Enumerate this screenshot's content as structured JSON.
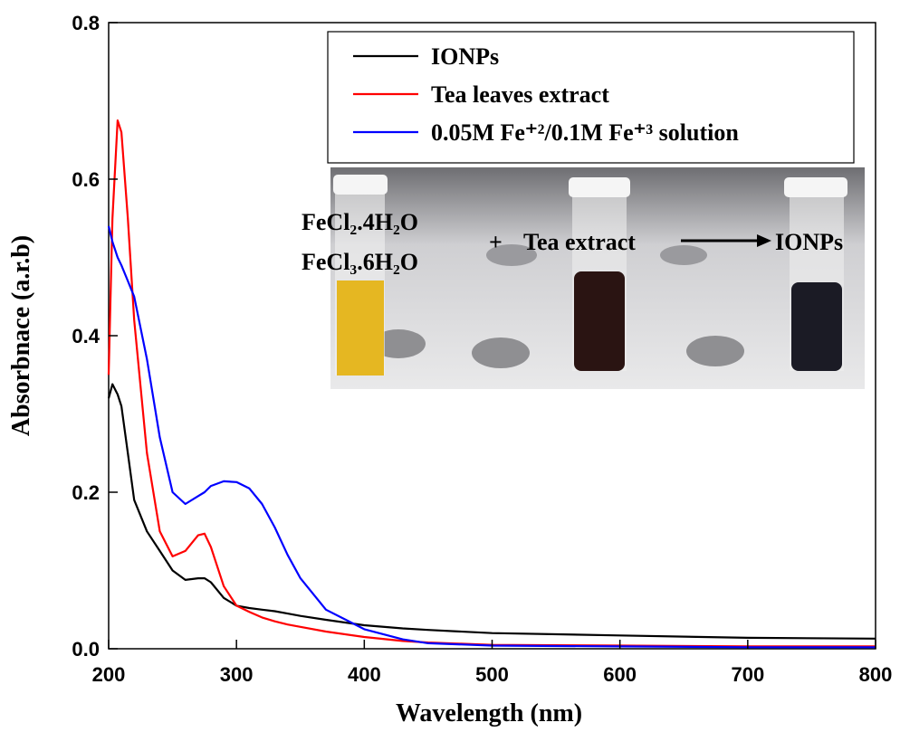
{
  "chart_data": {
    "type": "line",
    "xlabel": "Wavelength (nm)",
    "ylabel": "Absorbnace (a.r.b)",
    "x": [
      200,
      203,
      207,
      210,
      215,
      220,
      230,
      240,
      250,
      260,
      270,
      275,
      280,
      290,
      300,
      310,
      320,
      330,
      340,
      350,
      370,
      400,
      430,
      450,
      500,
      600,
      700,
      800
    ],
    "series": [
      {
        "name": "IONPs",
        "color": "#000000",
        "values": [
          0.32,
          0.338,
          0.325,
          0.31,
          0.25,
          0.19,
          0.15,
          0.125,
          0.1,
          0.088,
          0.09,
          0.09,
          0.085,
          0.065,
          0.055,
          0.052,
          0.05,
          0.048,
          0.045,
          0.042,
          0.037,
          0.03,
          0.026,
          0.024,
          0.02,
          0.017,
          0.014,
          0.013
        ]
      },
      {
        "name": "Tea leaves extract",
        "color": "#ff0000",
        "values": [
          0.35,
          0.55,
          0.675,
          0.66,
          0.55,
          0.42,
          0.25,
          0.15,
          0.118,
          0.125,
          0.145,
          0.147,
          0.13,
          0.08,
          0.055,
          0.047,
          0.04,
          0.035,
          0.031,
          0.028,
          0.022,
          0.015,
          0.01,
          0.008,
          0.005,
          0.004,
          0.003,
          0.003
        ]
      },
      {
        "name": "0.05M Fe⁺²/0.1M Fe⁺³ solution",
        "color": "#0000ff",
        "values": [
          0.54,
          0.52,
          0.5,
          0.49,
          0.47,
          0.45,
          0.37,
          0.27,
          0.2,
          0.185,
          0.195,
          0.2,
          0.208,
          0.214,
          0.213,
          0.205,
          0.185,
          0.155,
          0.12,
          0.09,
          0.05,
          0.025,
          0.012,
          0.007,
          0.004,
          0.003,
          0.002,
          0.002
        ]
      }
    ],
    "xlim": [
      200,
      800
    ],
    "ylim": [
      0,
      0.8
    ],
    "xticks": [
      200,
      300,
      400,
      500,
      600,
      700,
      800
    ],
    "yticks": [
      {
        "value": 0,
        "label": "0.0"
      },
      0.2,
      0.4,
      0.6,
      0.8
    ],
    "annotations": [
      "FeCl₂.4H₂O",
      "FeCl₃.6H₂O",
      "+",
      "Tea extract",
      "IONPs"
    ]
  }
}
